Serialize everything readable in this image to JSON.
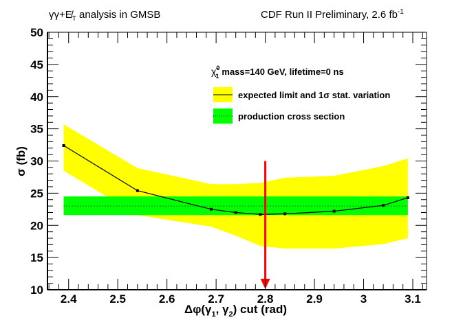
{
  "chart_data": {
    "type": "line",
    "title_left": "γγ+E̸T analysis in GMSB",
    "title_right": "CDF Run II Preliminary, 2.6 fb",
    "title_right_sup": "-1",
    "xlabel": "Δφ(γ1, γ2) cut (rad)",
    "ylabel": "σ (fb)",
    "xlim": [
      2.357,
      3.128
    ],
    "ylim": [
      10,
      50
    ],
    "x_ticks": [
      2.4,
      2.5,
      2.6,
      2.7,
      2.8,
      2.9,
      3.0,
      3.1
    ],
    "x_tick_labels": [
      "2.4",
      "2.5",
      "2.6",
      "2.7",
      "2.8",
      "2.9",
      "3",
      "3.1"
    ],
    "y_ticks": [
      10,
      15,
      20,
      25,
      30,
      35,
      40,
      45,
      50
    ],
    "y_tick_labels": [
      "10",
      "15",
      "20",
      "25",
      "30",
      "35",
      "40",
      "45",
      "50"
    ],
    "legend_header": "mass=140 GeV, lifetime=0 ns",
    "legend_header_symbol": "χ̃1⁰",
    "series": [
      {
        "name": "expected limit and 1σ stat. variation",
        "x": [
          2.39,
          2.54,
          2.69,
          2.74,
          2.79,
          2.84,
          2.94,
          3.04,
          3.09
        ],
        "values": [
          32.4,
          25.4,
          22.5,
          22.0,
          21.7,
          21.8,
          22.2,
          23.1,
          24.3
        ],
        "band_upper": [
          35.7,
          28.9,
          26.4,
          26.4,
          26.6,
          27.4,
          27.7,
          29.2,
          30.4
        ],
        "band_lower": [
          28.5,
          21.6,
          19.8,
          18.4,
          16.8,
          16.4,
          16.4,
          17.1,
          18.0
        ],
        "band_color": "#ffff00",
        "line_color": "#000000"
      },
      {
        "name": "production cross section",
        "x": [
          2.39,
          3.09
        ],
        "values": [
          23.0,
          23.0
        ],
        "band_upper": [
          24.5,
          24.5
        ],
        "band_lower": [
          21.6,
          21.6
        ],
        "band_color": "#00ff00",
        "line_style": "dotted"
      }
    ],
    "annotations": [
      {
        "type": "arrow",
        "x": 2.8,
        "y_from": 30,
        "y_to": 10,
        "color": "#ff0000"
      }
    ],
    "legend_position": "top-right",
    "grid": false
  }
}
